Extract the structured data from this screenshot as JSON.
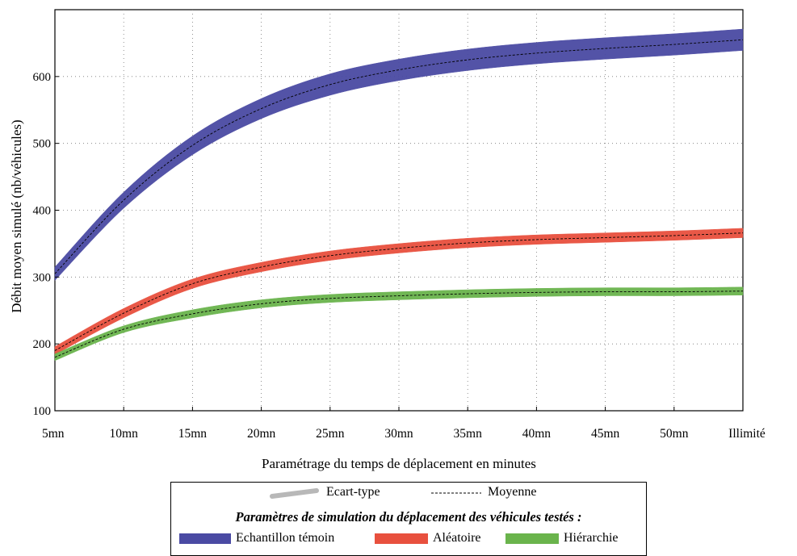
{
  "chart_data": {
    "type": "area",
    "title": "",
    "xlabel": "Paramétrage du temps de déplacement en minutes",
    "ylabel": "Débit moyen simulé (nb/véhicules)",
    "categories": [
      "5mn",
      "10mn",
      "15mn",
      "20mn",
      "25mn",
      "30mn",
      "35mn",
      "40mn",
      "45mn",
      "50mn",
      "Illimité"
    ],
    "ylim": [
      100,
      700
    ],
    "yticks": [
      100,
      200,
      300,
      400,
      500,
      600
    ],
    "grid": true,
    "series": [
      {
        "name": "Echantillon témoin",
        "color": "#4a4aa3",
        "mean": [
          305,
          415,
          497,
          552,
          588,
          610,
          625,
          635,
          642,
          648,
          655
        ],
        "std": [
          10,
          12,
          14,
          15,
          16,
          16,
          16,
          16,
          16,
          16,
          16
        ]
      },
      {
        "name": "Aléatoire",
        "color": "#e8503e",
        "mean": [
          190,
          246,
          290,
          315,
          332,
          343,
          351,
          356,
          359,
          362,
          366
        ],
        "std": [
          6,
          7,
          7,
          7,
          7,
          7,
          7,
          7,
          7,
          7,
          7
        ]
      },
      {
        "name": "Hiérarchie",
        "color": "#6ab44c",
        "mean": [
          180,
          222,
          245,
          260,
          268,
          272,
          275,
          277,
          278,
          278,
          279
        ],
        "std": [
          5,
          5,
          6,
          6,
          6,
          6,
          6,
          6,
          6,
          6,
          6
        ]
      }
    ]
  },
  "legend": {
    "std_label": "Ecart-type",
    "mean_label": "Moyenne",
    "title": "Paramètres de simulation du déplacement des véhicules testés :",
    "std_color": "#b8b8b8",
    "items": [
      {
        "label": "Echantillon témoin",
        "color": "#4a4aa3"
      },
      {
        "label": "Aléatoire",
        "color": "#e8503e"
      },
      {
        "label": "Hiérarchie",
        "color": "#6ab44c"
      }
    ]
  }
}
